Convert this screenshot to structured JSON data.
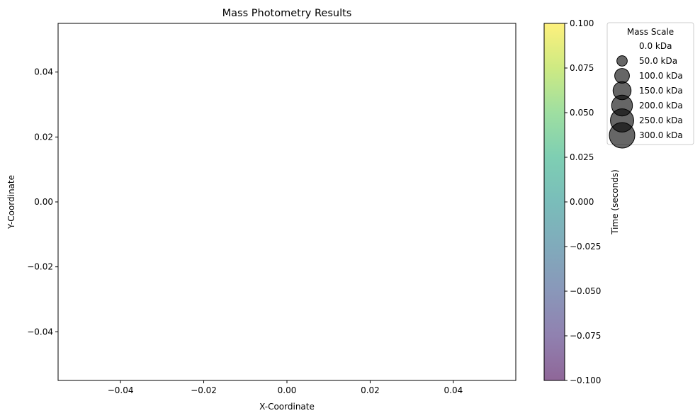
{
  "chart_data": {
    "type": "scatter",
    "title": "Mass Photometry Results",
    "xlabel": "X-Coordinate",
    "ylabel": "Y-Coordinate",
    "xlim": [
      -0.055,
      0.055
    ],
    "ylim": [
      -0.055,
      0.055
    ],
    "x_ticks": [
      -0.04,
      -0.02,
      0.0,
      0.02,
      0.04
    ],
    "x_tick_labels": [
      "−0.04",
      "−0.02",
      "0.00",
      "0.02",
      "0.04"
    ],
    "y_ticks": [
      -0.04,
      -0.02,
      0.0,
      0.02,
      0.04
    ],
    "y_tick_labels": [
      "−0.04",
      "−0.02",
      "0.00",
      "0.02",
      "0.04"
    ],
    "grid": false,
    "points": [],
    "colorbar": {
      "label": "Time (seconds)",
      "colormap": "viridis",
      "alpha": 0.6,
      "range": [
        -0.1,
        0.1
      ],
      "ticks": [
        -0.1,
        -0.075,
        -0.05,
        -0.025,
        0.0,
        0.025,
        0.05,
        0.075,
        0.1
      ],
      "tick_labels": [
        "−0.100",
        "−0.075",
        "−0.050",
        "−0.025",
        "0.000",
        "0.025",
        "0.050",
        "0.075",
        "0.100"
      ]
    },
    "legend": {
      "title": "Mass Scale",
      "placement": "outside-right-top",
      "marker_color": "#000000",
      "marker_alpha": 0.6,
      "entries": [
        {
          "label": "0.0 kDa",
          "mass": 0
        },
        {
          "label": "50.0 kDa",
          "mass": 50
        },
        {
          "label": "100.0 kDa",
          "mass": 100
        },
        {
          "label": "150.0 kDa",
          "mass": 150
        },
        {
          "label": "200.0 kDa",
          "mass": 200
        },
        {
          "label": "250.0 kDa",
          "mass": 250
        },
        {
          "label": "300.0 kDa",
          "mass": 300
        }
      ]
    }
  }
}
